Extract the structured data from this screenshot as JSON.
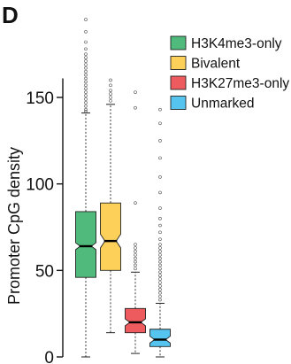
{
  "panel_label": "D",
  "chart_data": {
    "type": "boxplot",
    "ylabel": "Promoter CpG density",
    "ylim": [
      0,
      160
    ],
    "yticks": [
      0,
      50,
      100,
      150
    ],
    "legend_position": "top-right",
    "series": [
      {
        "name": "H3K4me3-only",
        "color": "#4fba7b",
        "q1": 46,
        "median": 64,
        "q3": 84,
        "notch_low": 62,
        "notch_high": 66,
        "whisker_low": 0,
        "whisker_high": 141,
        "outliers": [
          142,
          143,
          145,
          147,
          149,
          151,
          153,
          155,
          157,
          159,
          161,
          163,
          165,
          167,
          169,
          171,
          173,
          175,
          178,
          182,
          188,
          195
        ]
      },
      {
        "name": "Bivalent",
        "color": "#fdd05a",
        "q1": 50,
        "median": 67,
        "q3": 89,
        "notch_low": 63,
        "notch_high": 71,
        "whisker_low": 14,
        "whisker_high": 146,
        "outliers": [
          148,
          150,
          152,
          154,
          157,
          160
        ]
      },
      {
        "name": "H3K27me3-only",
        "color": "#ee5b5e",
        "q1": 14,
        "median": 20,
        "q3": 28,
        "notch_low": 18,
        "notch_high": 22,
        "whisker_low": 2,
        "whisker_high": 49,
        "outliers": [
          51,
          53,
          55,
          57,
          59,
          61,
          63,
          65,
          89,
          144,
          153
        ]
      },
      {
        "name": "Unmarked",
        "color": "#55c4ee",
        "q1": 6,
        "median": 10,
        "q3": 16,
        "notch_low": 8,
        "notch_high": 12,
        "whisker_low": 0,
        "whisker_high": 31,
        "outliers": [
          33,
          35,
          37,
          39,
          41,
          43,
          45,
          47,
          49,
          51,
          53,
          55,
          57,
          59,
          61,
          63,
          65,
          68,
          72,
          76,
          80,
          86,
          95,
          104,
          115,
          125,
          135,
          143
        ]
      }
    ]
  }
}
